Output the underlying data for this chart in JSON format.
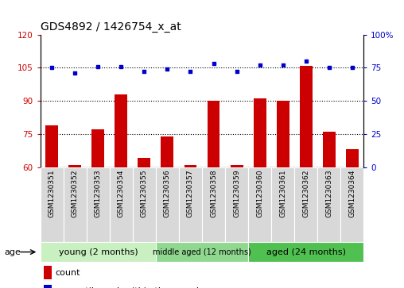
{
  "title": "GDS4892 / 1426754_x_at",
  "samples": [
    "GSM1230351",
    "GSM1230352",
    "GSM1230353",
    "GSM1230354",
    "GSM1230355",
    "GSM1230356",
    "GSM1230357",
    "GSM1230358",
    "GSM1230359",
    "GSM1230360",
    "GSM1230361",
    "GSM1230362",
    "GSM1230363",
    "GSM1230364"
  ],
  "counts": [
    79,
    61,
    77,
    93,
    64,
    74,
    61,
    90,
    61,
    91,
    90,
    106,
    76,
    68
  ],
  "percentile_ranks": [
    75,
    71,
    76,
    76,
    72,
    74,
    72,
    78,
    72,
    77,
    77,
    80,
    75,
    75
  ],
  "groups": [
    {
      "label": "young (2 months)",
      "start": 0,
      "end": 4,
      "color": "#c8f0c0"
    },
    {
      "label": "middle aged (12 months)",
      "start": 5,
      "end": 8,
      "color": "#90d890"
    },
    {
      "label": "aged (24 months)",
      "start": 9,
      "end": 13,
      "color": "#50c050"
    }
  ],
  "ylim_left": [
    60,
    120
  ],
  "ylim_right": [
    0,
    100
  ],
  "yticks_left": [
    60,
    75,
    90,
    105,
    120
  ],
  "yticks_right": [
    0,
    25,
    50,
    75,
    100
  ],
  "bar_color": "#CC0000",
  "dot_color": "#0000CC",
  "bar_bottom": 60,
  "title_fontsize": 10,
  "tick_fontsize": 7.5,
  "sample_fontsize": 6.5,
  "legend_fontsize": 8
}
